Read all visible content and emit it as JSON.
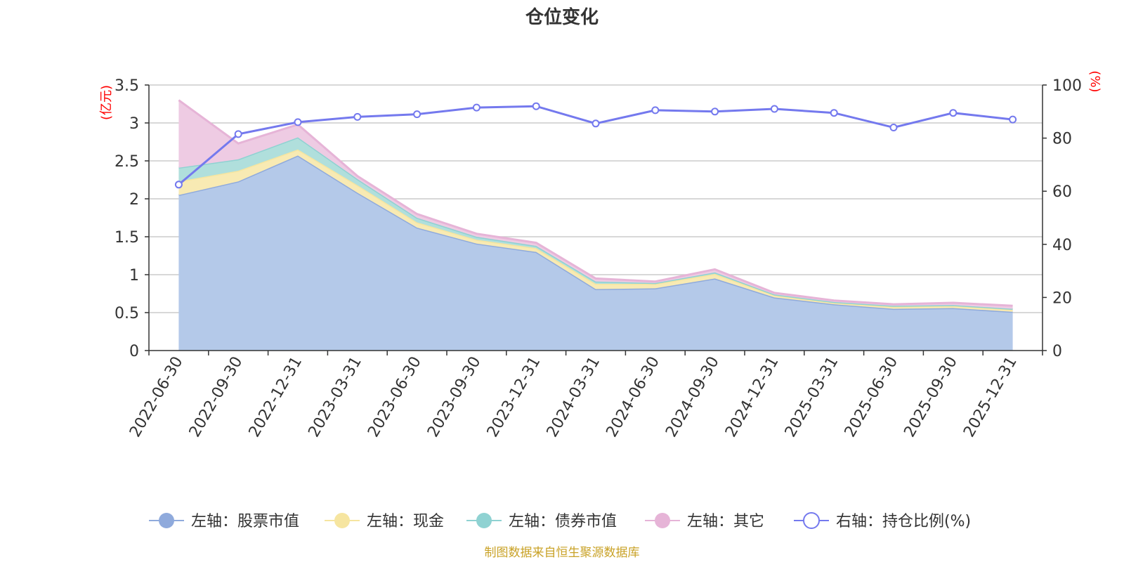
{
  "chart_data": {
    "type": "area",
    "title": "仓位变化",
    "categories": [
      "2022-06-30",
      "2022-09-30",
      "2022-12-31",
      "2023-03-31",
      "2023-06-30",
      "2023-09-30",
      "2023-12-31",
      "2024-03-31",
      "2024-06-30",
      "2024-09-30",
      "2024-12-31",
      "2025-03-31",
      "2025-06-30",
      "2025-09-30",
      "2025-12-31"
    ],
    "left_axis": {
      "label": "(亿元)",
      "ylim": [
        0,
        3.5
      ],
      "ticks": [
        "0",
        "0.5",
        "1",
        "1.5",
        "2",
        "2.5",
        "3",
        "3.5"
      ],
      "tick_values": [
        0,
        0.5,
        1,
        1.5,
        2,
        2.5,
        3,
        3.5
      ]
    },
    "right_axis": {
      "label": "(%)",
      "ylim": [
        0,
        100
      ],
      "ticks": [
        "0",
        "20",
        "40",
        "60",
        "80",
        "100"
      ],
      "tick_values": [
        0,
        20,
        40,
        60,
        80,
        100
      ]
    },
    "series": [
      {
        "name": "左轴：股票市值",
        "axis": "left",
        "stacked": true,
        "color": "#8faadc",
        "fill": "#b4c9e9",
        "values": [
          2.05,
          2.23,
          2.57,
          2.08,
          1.62,
          1.41,
          1.3,
          0.81,
          0.82,
          0.95,
          0.7,
          0.61,
          0.55,
          0.56,
          0.51
        ]
      },
      {
        "name": "左轴：现金",
        "axis": "left",
        "stacked": true,
        "color": "#f6e5a0",
        "fill": "#f8eab3",
        "values": [
          0.18,
          0.14,
          0.08,
          0.1,
          0.07,
          0.05,
          0.05,
          0.07,
          0.06,
          0.06,
          0.03,
          0.02,
          0.03,
          0.03,
          0.03
        ]
      },
      {
        "name": "左轴：债券市值",
        "axis": "left",
        "stacked": true,
        "color": "#8fd2d2",
        "fill": "#b0dfdc",
        "values": [
          0.18,
          0.15,
          0.16,
          0.08,
          0.06,
          0.04,
          0.03,
          0.03,
          0.01,
          0.02,
          0.01,
          0.01,
          0.01,
          0.01,
          0.01
        ]
      },
      {
        "name": "左轴：其它",
        "axis": "left",
        "stacked": true,
        "color": "#e6b4d7",
        "fill": "#eecbe3",
        "values": [
          0.89,
          0.21,
          0.17,
          0.04,
          0.05,
          0.04,
          0.04,
          0.04,
          0.02,
          0.04,
          0.02,
          0.02,
          0.02,
          0.03,
          0.04
        ]
      },
      {
        "name": "右轴：持仓比例(%)",
        "axis": "right",
        "stacked": false,
        "color": "#7479ee",
        "fill": "#ffffff",
        "values": [
          62.5,
          81.5,
          86.0,
          88.0,
          89.0,
          91.5,
          92.0,
          85.5,
          90.5,
          90.0,
          91.0,
          89.5,
          84.0,
          89.5,
          87.0
        ]
      }
    ],
    "source": "制图数据来自恒生聚源数据库"
  }
}
